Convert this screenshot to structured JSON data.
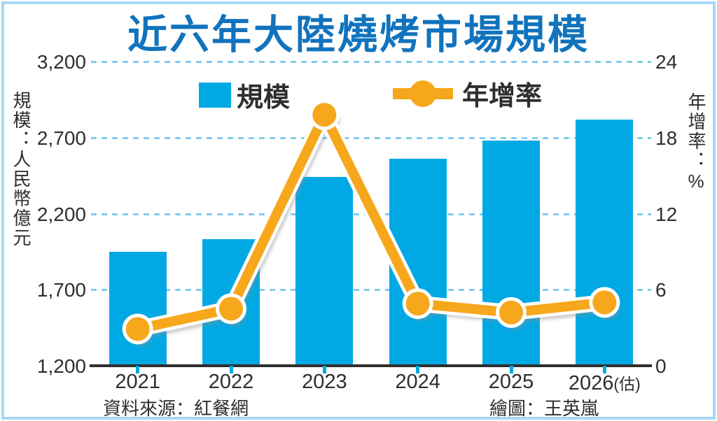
{
  "title": "近六年大陸燒烤市場規模",
  "legend": {
    "bar_label": "規模",
    "line_label": "年增率"
  },
  "left_axis": {
    "title": "規模：人民幣億元",
    "ticks": [
      "3,200",
      "2,700",
      "2,200",
      "1,700",
      "1,200"
    ]
  },
  "right_axis": {
    "title": "年增率：%",
    "ticks": [
      "24",
      "18",
      "12",
      "6",
      "0"
    ]
  },
  "footer": {
    "source": "資料來源：紅餐網",
    "credit": "繪圖：王英嵐"
  },
  "colors": {
    "bar": "#00a9e3",
    "line": "#f7a71b",
    "title": "#1173bd",
    "grid": "#85cbf0",
    "text": "#2e2e2e",
    "border": "#a5d9f2",
    "shadow": "#8f8f8f"
  },
  "chart_data": {
    "type": "bar+line combo",
    "title": "近六年大陸燒烤市場規模",
    "categories": [
      "2021",
      "2022",
      "2023",
      "2024",
      "2025",
      "2026(估)"
    ],
    "series": [
      {
        "name": "規模",
        "type": "bar",
        "axis": "left",
        "unit": "人民幣億元",
        "values": [
          1950,
          2030,
          2440,
          2560,
          2680,
          2820
        ]
      },
      {
        "name": "年增率",
        "type": "line",
        "axis": "right",
        "unit": "%",
        "values": [
          2.9,
          4.5,
          19.8,
          4.9,
          4.2,
          5.0
        ]
      }
    ],
    "left_ylabel": "規模：人民幣億元",
    "right_ylabel": "年增率：%",
    "left_ylim": [
      1200,
      3200
    ],
    "right_ylim": [
      0,
      24
    ],
    "left_tick_step": 500,
    "right_tick_step": 6,
    "grid": "horizontal dashed",
    "legend_position": "top"
  }
}
